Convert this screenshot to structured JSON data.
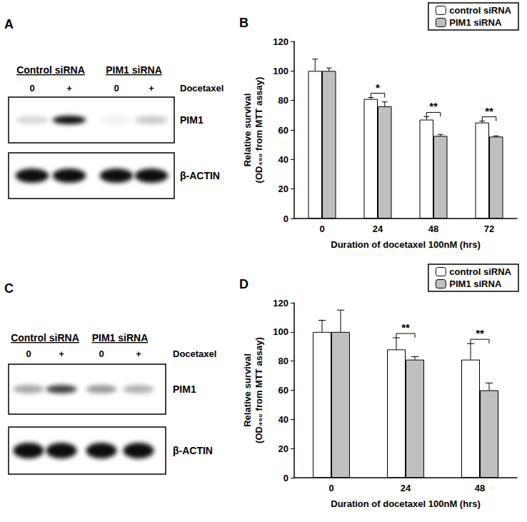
{
  "chart_data": [
    {
      "type": "bar",
      "title": "B",
      "categories": [
        "0",
        "24",
        "48",
        "72"
      ],
      "series": [
        {
          "name": "control siRNA",
          "color": "#ffffff",
          "values": [
            100,
            81,
            67,
            65
          ],
          "errors": [
            8,
            1,
            2,
            1
          ]
        },
        {
          "name": "PIM1 siRNA",
          "color": "#bfbfbf",
          "values": [
            100,
            76,
            56,
            55.5
          ],
          "errors": [
            2,
            3,
            1,
            0.5
          ]
        }
      ],
      "xlabel": "Duration of docetaxel 100nM (hrs)",
      "ylabel": "Relative survival\n(OD₄₅₀ from MTT assay)",
      "ylim": [
        0,
        120
      ],
      "yticks": [
        0,
        20,
        40,
        60,
        80,
        100,
        120
      ],
      "grid": false,
      "legend": "upper right",
      "annotations": [
        {
          "category": "24",
          "text": "*"
        },
        {
          "category": "48",
          "text": "**"
        },
        {
          "category": "72",
          "text": "**"
        }
      ]
    },
    {
      "type": "bar",
      "title": "D",
      "categories": [
        "0",
        "24",
        "48"
      ],
      "series": [
        {
          "name": "control siRNA",
          "color": "#ffffff",
          "values": [
            100,
            88,
            81
          ],
          "errors": [
            8,
            8,
            11
          ]
        },
        {
          "name": "PIM1 siRNA",
          "color": "#bfbfbf",
          "values": [
            100,
            81,
            60
          ],
          "errors": [
            15,
            2,
            5
          ]
        }
      ],
      "xlabel": "Duration of docetaxel 100nM (hrs)",
      "ylabel": "Relative survival\n(OD₄₅₀ from MTT assay)",
      "ylim": [
        0,
        120
      ],
      "yticks": [
        0,
        20,
        40,
        60,
        80,
        100,
        120
      ],
      "grid": false,
      "legend": "upper right",
      "annotations": [
        {
          "category": "24",
          "text": "**"
        },
        {
          "category": "48",
          "text": "**"
        }
      ]
    }
  ],
  "blots": [
    {
      "panel": "A",
      "treatment": "Docetaxel",
      "groups": [
        {
          "label": "Control siRNA",
          "lanes": [
            "0",
            "+"
          ]
        },
        {
          "label": "PIM1 siRNA",
          "lanes": [
            "0",
            "+"
          ]
        }
      ],
      "rows": [
        {
          "label": "PIM1",
          "intensities": [
            0.15,
            0.95,
            0.05,
            0.2
          ]
        },
        {
          "label": "β-ACTIN",
          "intensities": [
            0.95,
            0.95,
            0.95,
            0.95
          ]
        }
      ]
    },
    {
      "panel": "C",
      "treatment": "Docetaxel",
      "groups": [
        {
          "label": "Control siRNA",
          "lanes": [
            "0",
            "+"
          ]
        },
        {
          "label": "PIM1 siRNA",
          "lanes": [
            "0",
            "+"
          ]
        }
      ],
      "rows": [
        {
          "label": "PIM1",
          "intensities": [
            0.35,
            0.75,
            0.4,
            0.3
          ]
        },
        {
          "label": "β-ACTIN",
          "intensities": [
            0.95,
            0.95,
            0.95,
            0.95
          ]
        }
      ]
    }
  ]
}
